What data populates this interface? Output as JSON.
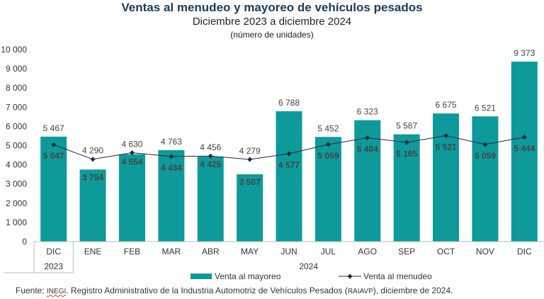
{
  "title": "Ventas al menudeo y mayoreo de vehículos pesados",
  "subtitle": "Diciembre 2023 a diciembre 2024",
  "note": "(número de unidades)",
  "source": {
    "prefix": "Fuente: ",
    "inegi": "INEGI",
    "middle": ". Registro Administrativo de la Industria Automotriz de Vehículos Pesados (",
    "raiavp": "RAIAVP",
    "suffix": "), diciembre de 2024."
  },
  "colors": {
    "bar": "#0e9a9a",
    "line": "#1f2a44",
    "text": "#444444",
    "axis": "#bbbbbb"
  },
  "chart_data": {
    "type": "bar",
    "categories": [
      "DIC",
      "ENE",
      "FEB",
      "MAR",
      "ABR",
      "MAY",
      "JUN",
      "JUL",
      "AGO",
      "SEP",
      "OCT",
      "NOV",
      "DIC"
    ],
    "year_groups": [
      {
        "label": "2023",
        "start": 0,
        "end": 0
      },
      {
        "label": "2024",
        "start": 1,
        "end": 12
      }
    ],
    "series": [
      {
        "name": "Venta al mayoreo",
        "type": "bar",
        "values": [
          5467,
          3754,
          4554,
          4763,
          4425,
          3507,
          6788,
          5452,
          6323,
          5587,
          6675,
          6521,
          9373
        ]
      },
      {
        "name": "Venta al menudeo",
        "type": "line",
        "values": [
          5047,
          4290,
          4630,
          4434,
          4456,
          4279,
          4577,
          5059,
          5404,
          5165,
          5521,
          5059,
          5444
        ]
      }
    ],
    "ylim": [
      0,
      10000
    ],
    "yticks": [
      0,
      1000,
      2000,
      3000,
      4000,
      5000,
      6000,
      7000,
      8000,
      9000,
      10000
    ],
    "ytick_labels": [
      "0",
      "1 000",
      "2 000",
      "3 000",
      "4 000",
      "5 000",
      "6 000",
      "7 000",
      "8 000",
      "9 000",
      "10 000"
    ],
    "labels_above": [
      "5 467",
      "4 290",
      "4 630",
      "4 763",
      "4 456",
      "4 279",
      "6 788",
      "5 452",
      "6 323",
      "5 587",
      "6 675",
      "6 521",
      "9 373"
    ],
    "labels_inside": [
      "5 047",
      "3 754",
      "4 554",
      "4 434",
      "4 425",
      "3 507",
      "4 577",
      "5 059",
      "5 404",
      "5 165",
      "5 521",
      "5 059",
      "5 444"
    ],
    "legend": "bottom-center",
    "grid": false
  }
}
